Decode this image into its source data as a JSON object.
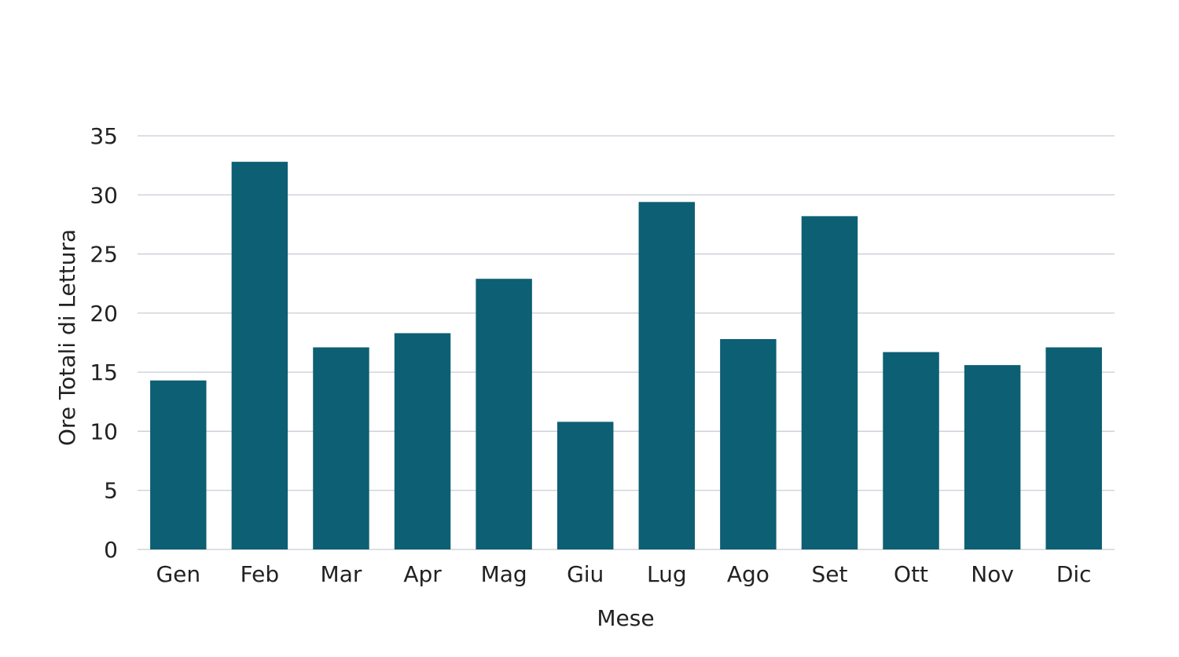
{
  "chart_data": {
    "type": "bar",
    "title": "",
    "xlabel": "Mese",
    "ylabel": "Ore Totali di Lettura",
    "categories": [
      "Gen",
      "Feb",
      "Mar",
      "Apr",
      "Mag",
      "Giu",
      "Lug",
      "Ago",
      "Set",
      "Ott",
      "Nov",
      "Dic"
    ],
    "values": [
      14.3,
      32.8,
      17.1,
      18.3,
      22.9,
      10.8,
      29.4,
      17.8,
      28.2,
      16.7,
      15.6,
      17.1
    ],
    "ylim": [
      0,
      35
    ],
    "yticks": [
      0,
      5,
      10,
      15,
      20,
      25,
      30,
      35
    ],
    "grid": true,
    "bar_color": "#0d5f73",
    "grid_color": "#c8ccd4"
  }
}
